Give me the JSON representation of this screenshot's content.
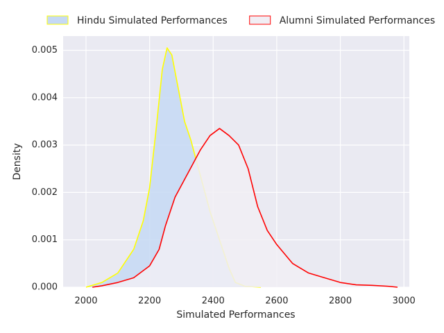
{
  "chart_data": {
    "type": "area",
    "xlabel": "Simulated Performances",
    "ylabel": "Density",
    "xlim": [
      1928,
      3017
    ],
    "ylim": [
      0,
      0.0053
    ],
    "xticks": [
      2000,
      2200,
      2400,
      2600,
      2800,
      3000
    ],
    "yticks": [
      {
        "value": 0,
        "label": "0.000"
      },
      {
        "value": 0.001,
        "label": "0.001"
      },
      {
        "value": 0.002,
        "label": "0.002"
      },
      {
        "value": 0.003,
        "label": "0.003"
      },
      {
        "value": 0.004,
        "label": "0.004"
      },
      {
        "value": 0.005,
        "label": "0.005"
      }
    ],
    "grid": true,
    "legend": "top",
    "series": [
      {
        "name": "Hindu Simulated Performances",
        "color": "#ffff00",
        "fill": "#c5d9f5",
        "x": [
          2000,
          2050,
          2100,
          2150,
          2180,
          2200,
          2220,
          2240,
          2255,
          2270,
          2290,
          2310,
          2330,
          2350,
          2370,
          2390,
          2410,
          2430,
          2450,
          2470,
          2500,
          2550
        ],
        "values": [
          0,
          0.0001,
          0.0003,
          0.0008,
          0.0014,
          0.0021,
          0.0033,
          0.0046,
          0.00505,
          0.0049,
          0.0042,
          0.0035,
          0.0031,
          0.0026,
          0.0021,
          0.0016,
          0.0012,
          0.0008,
          0.0004,
          0.0001,
          2e-05,
          0
        ]
      },
      {
        "name": "Alumni Simulated Performances",
        "color": "#ff0000",
        "fill": "#f1eef4",
        "x": [
          2020,
          2050,
          2100,
          2150,
          2200,
          2230,
          2250,
          2280,
          2320,
          2360,
          2390,
          2420,
          2450,
          2480,
          2510,
          2540,
          2570,
          2600,
          2650,
          2700,
          2750,
          2800,
          2850,
          2900,
          2950,
          2980
        ],
        "values": [
          0,
          3e-05,
          0.0001,
          0.0002,
          0.00045,
          0.0008,
          0.0013,
          0.0019,
          0.0024,
          0.0029,
          0.0032,
          0.00335,
          0.0032,
          0.003,
          0.0025,
          0.0017,
          0.0012,
          0.0009,
          0.0005,
          0.0003,
          0.0002,
          0.0001,
          5e-05,
          4e-05,
          2e-05,
          0
        ]
      }
    ]
  }
}
